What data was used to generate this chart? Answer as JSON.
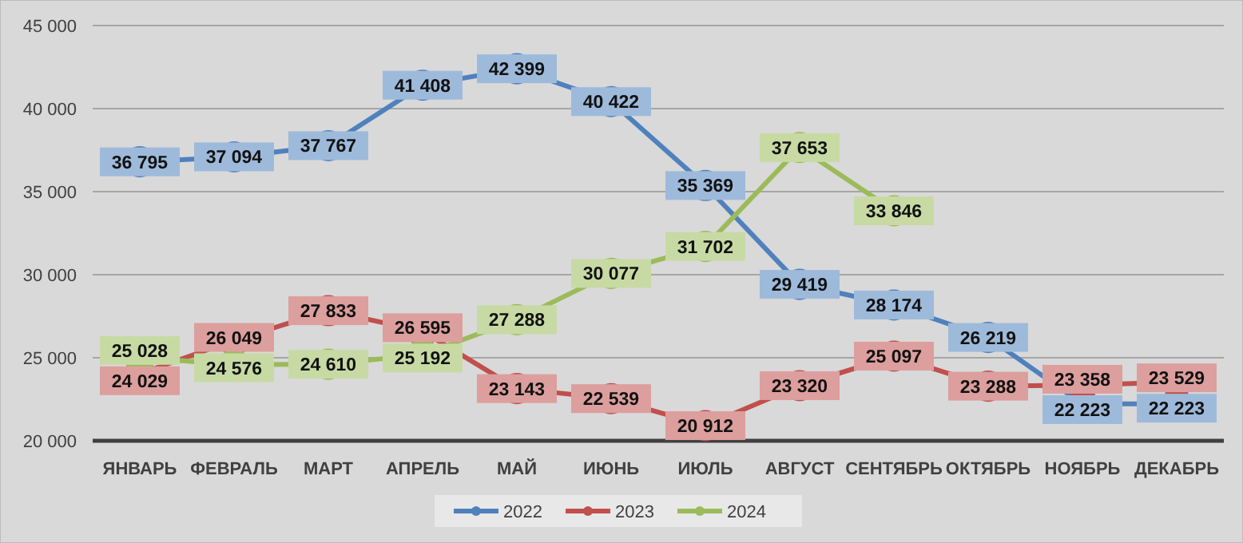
{
  "chart_data": {
    "type": "line",
    "categories": [
      "ЯНВАРЬ",
      "ФЕВРАЛЬ",
      "МАРТ",
      "АПРЕЛЬ",
      "МАЙ",
      "ИЮНЬ",
      "ИЮЛЬ",
      "АВГУСТ",
      "СЕНТЯБРЬ",
      "ОКТЯБРЬ",
      "НОЯБРЬ",
      "ДЕКАБРЬ"
    ],
    "series": [
      {
        "name": "2022",
        "color": "#4f81bd",
        "values": [
          36795,
          37094,
          37767,
          41408,
          42399,
          40422,
          35369,
          29419,
          28174,
          26219,
          22223,
          22223
        ]
      },
      {
        "name": "2023",
        "color": "#c0504d",
        "values": [
          24029,
          26049,
          27833,
          26595,
          23143,
          22539,
          20912,
          23320,
          25097,
          23288,
          23358,
          23529
        ]
      },
      {
        "name": "2024",
        "color": "#9bbb59",
        "values": [
          25028,
          24576,
          24610,
          25192,
          27288,
          30077,
          31702,
          37653,
          33846,
          null,
          null,
          null
        ]
      }
    ],
    "ylim": [
      20000,
      45000
    ],
    "yticks": [
      {
        "value": 20000,
        "label": "20 000"
      },
      {
        "value": 25000,
        "label": "25 000"
      },
      {
        "value": 30000,
        "label": "30 000"
      },
      {
        "value": 35000,
        "label": "35 000"
      },
      {
        "value": 40000,
        "label": "40 000"
      },
      {
        "value": 45000,
        "label": "45 000"
      }
    ],
    "grid": "y",
    "legend": "bottom",
    "marker": "circle",
    "line_style": "solid",
    "data_labels": true
  }
}
